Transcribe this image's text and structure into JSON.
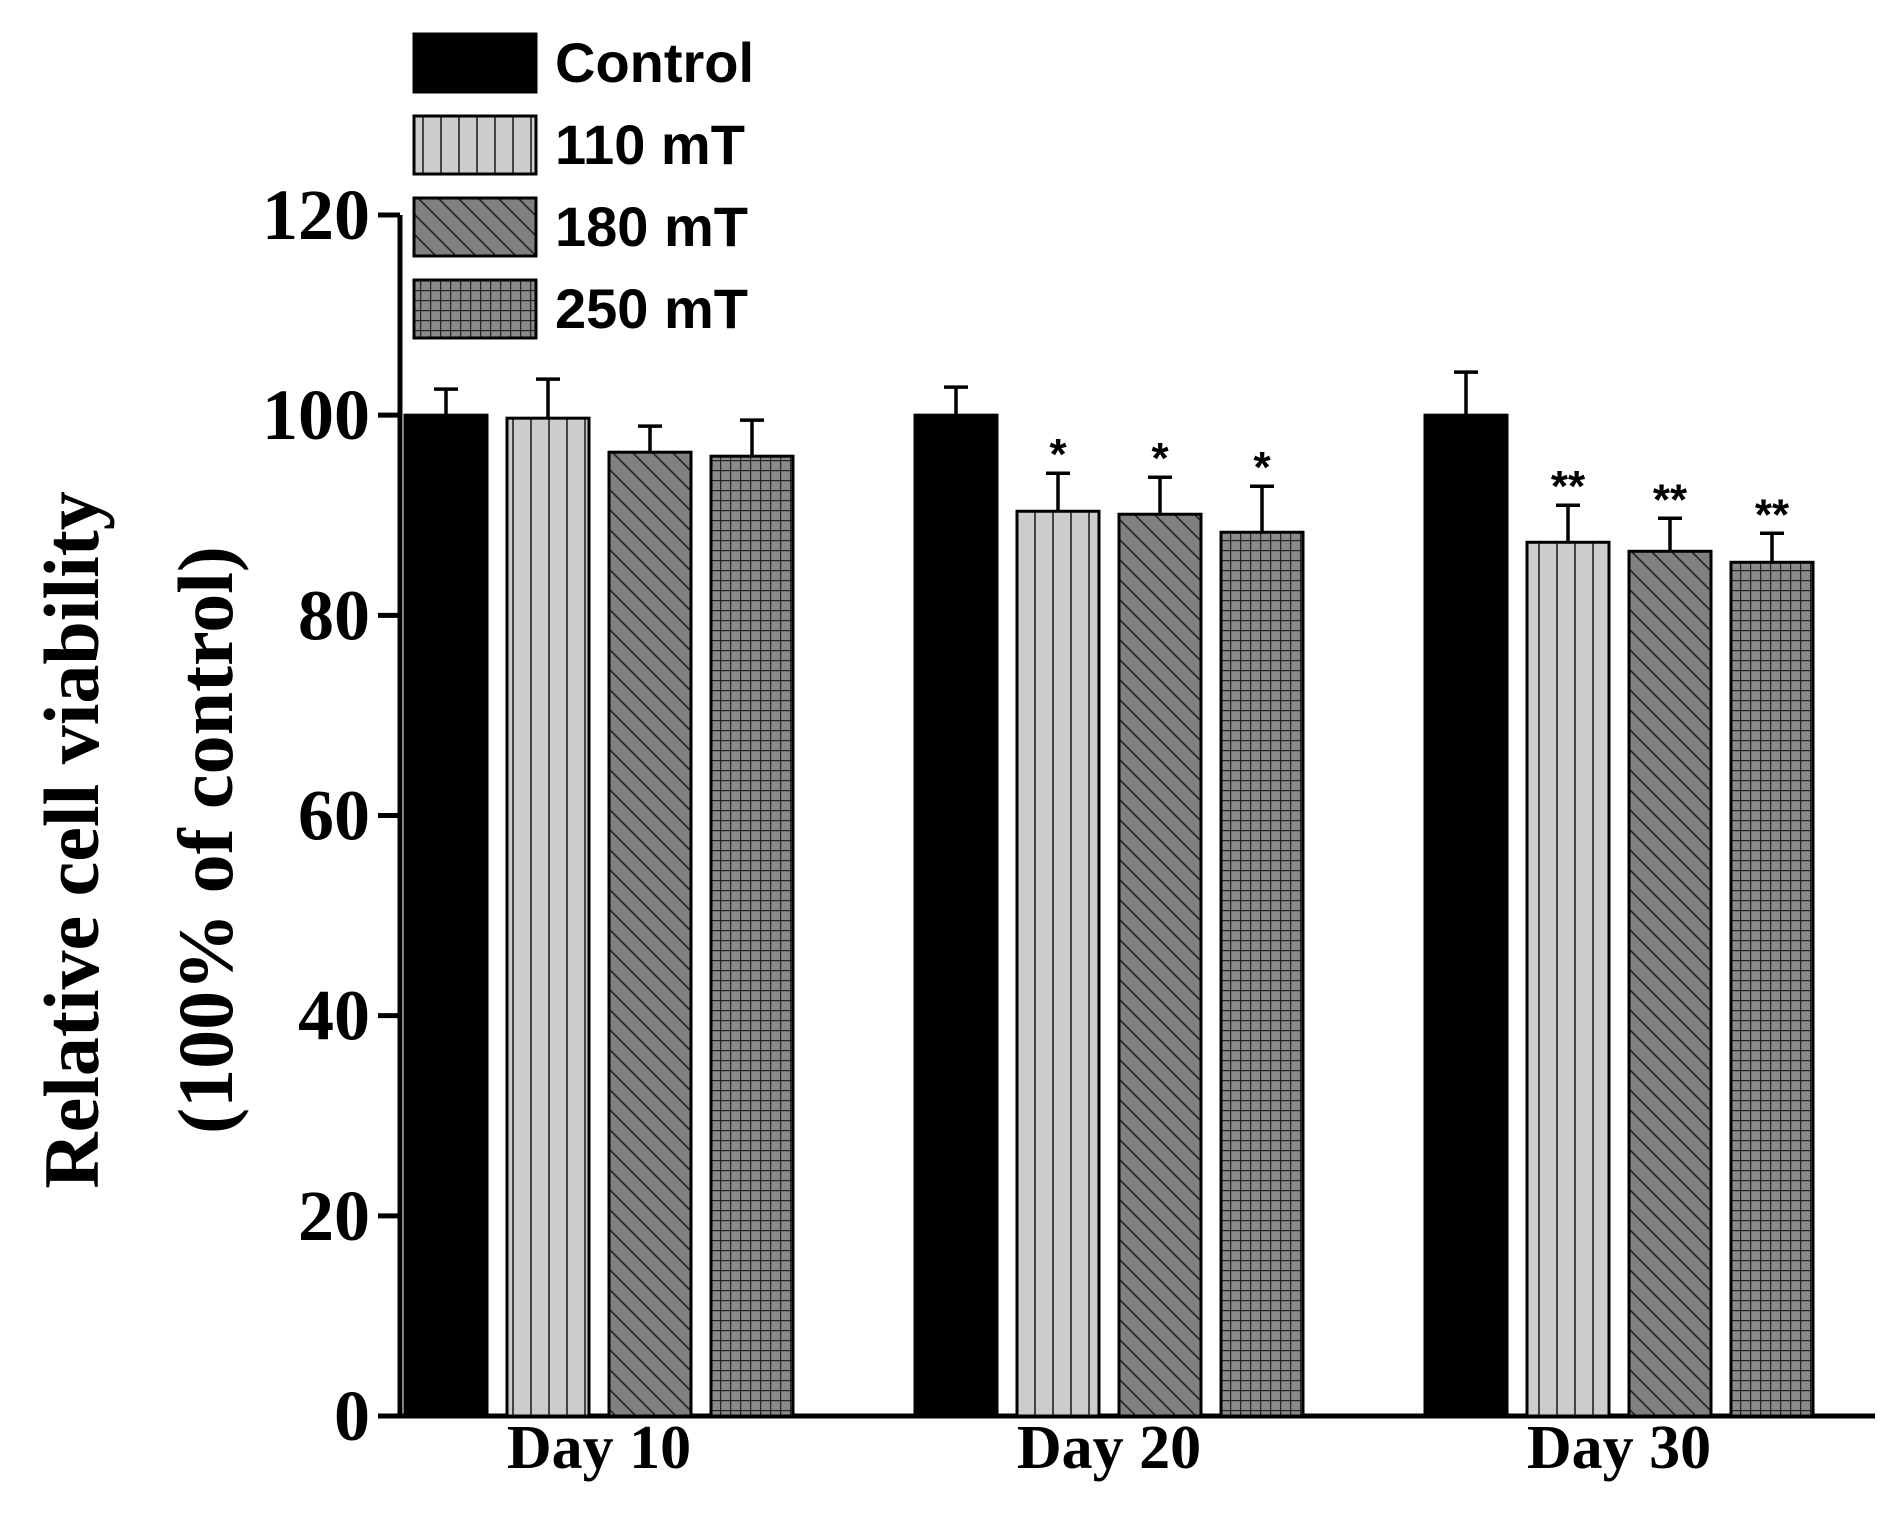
{
  "chart_data": {
    "type": "bar",
    "title": "",
    "xlabel": "",
    "ylabel": [
      "Relative cell viability",
      "(100% of control)"
    ],
    "ylim": [
      0,
      120
    ],
    "yticks": [
      0,
      20,
      40,
      60,
      80,
      100,
      120
    ],
    "categories": [
      "Day 10",
      "Day 20",
      "Day 30"
    ],
    "series": [
      {
        "name": "Control",
        "pattern": "solid-black",
        "values": [
          100,
          100,
          100
        ],
        "errors": [
          2.6,
          2.8,
          4.3
        ],
        "significance": [
          "",
          "",
          ""
        ]
      },
      {
        "name": "110 mT",
        "pattern": "vertical-lines",
        "values": [
          99.7,
          90.4,
          87.3
        ],
        "errors": [
          3.9,
          3.8,
          3.7
        ],
        "significance": [
          "",
          "*",
          "**"
        ]
      },
      {
        "name": "180 mT",
        "pattern": "diagonal-lines",
        "values": [
          96.3,
          90.1,
          86.4
        ],
        "errors": [
          2.6,
          3.7,
          3.3
        ],
        "significance": [
          "",
          "*",
          "**"
        ]
      },
      {
        "name": "250 mT",
        "pattern": "grid",
        "values": [
          95.9,
          88.3,
          85.3
        ],
        "errors": [
          3.6,
          4.6,
          2.9
        ],
        "significance": [
          "",
          "*",
          "**"
        ]
      }
    ],
    "legend_position": "top-left",
    "grid": false
  },
  "colors": {
    "control": "#000000",
    "light_gray": "#c8c8c8",
    "mid_gray": "#808080",
    "axis": "#000000"
  }
}
